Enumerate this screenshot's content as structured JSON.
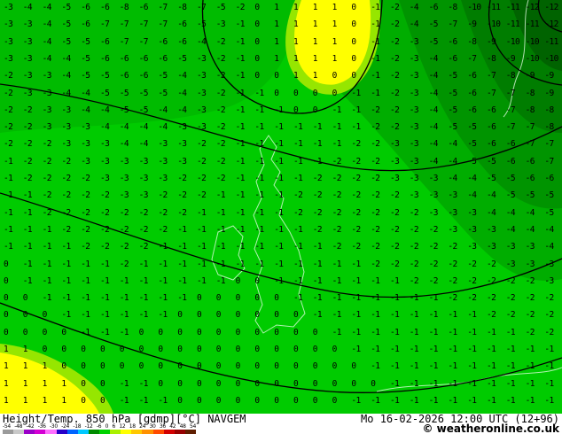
{
  "footer": {
    "title": "Height/Temp. 850 hPa [gdmp][°C] NAVGEM",
    "datetime": "Mo 16-02-2026 12:00 UTC (12+96)",
    "copyright": "© weatheronline.co.uk"
  },
  "scale": {
    "labels": [
      "-54",
      "-48",
      "-42",
      "-36",
      "-30",
      "-24",
      "-18",
      "-12",
      "-6",
      "0",
      "6",
      "12",
      "18",
      "24",
      "30",
      "36",
      "42",
      "48",
      "54"
    ],
    "segment_colors": [
      "#9b9b9b",
      "#c9c9c9",
      "#9a00c8",
      "#d400d4",
      "#ff6eff",
      "#2800c8",
      "#0064ff",
      "#00c8ff",
      "#008c00",
      "#00d200",
      "#aaf000",
      "#ffff00",
      "#ffc800",
      "#ff9100",
      "#ff4b00",
      "#d20000",
      "#960000",
      "#5f1e00"
    ]
  },
  "colors": {
    "base_green": "#00cb00",
    "band_green_1": "#00bb00",
    "band_green_2": "#00ad00",
    "band_green_3": "#009400",
    "band_green_4": "#007d00",
    "corner_green": "#006300",
    "warm_rim": "#96e600",
    "warm_yellow": "#ffff00",
    "contour_black": "#000000"
  },
  "map": {
    "unit": "°C",
    "temp_rows": [
      [
        -3,
        -4,
        -4,
        -5,
        -6,
        -6,
        -8,
        -6,
        -7,
        -8,
        -7,
        -5,
        -2,
        0,
        1,
        1,
        1,
        1,
        0,
        -1,
        -2,
        -4,
        -6,
        -8,
        -10,
        -11,
        -11,
        -12,
        -12
      ],
      [
        -3,
        -3,
        -4,
        -5,
        -6,
        -7,
        -7,
        -7,
        -7,
        -6,
        -5,
        -3,
        -1,
        0,
        1,
        1,
        1,
        1,
        0,
        -1,
        -2,
        -4,
        -5,
        -7,
        -9,
        -10,
        -11,
        -11,
        -12
      ],
      [
        -3,
        -3,
        -4,
        -5,
        -5,
        -6,
        -7,
        -7,
        -6,
        -6,
        -4,
        -2,
        -1,
        0,
        1,
        1,
        1,
        1,
        0,
        -1,
        -2,
        -3,
        -5,
        -6,
        -8,
        -9,
        -10,
        -10,
        -11
      ],
      [
        -3,
        -3,
        -4,
        -4,
        -5,
        -6,
        -6,
        -6,
        -6,
        -5,
        -3,
        -2,
        -1,
        0,
        1,
        1,
        1,
        1,
        0,
        -1,
        -2,
        -3,
        -4,
        -6,
        -7,
        -8,
        -9,
        -10,
        -10
      ],
      [
        -2,
        -3,
        -3,
        -4,
        -5,
        -5,
        -6,
        -6,
        -5,
        -4,
        -3,
        -2,
        -1,
        0,
        0,
        1,
        1,
        0,
        0,
        -1,
        -2,
        -3,
        -4,
        -5,
        -6,
        -7,
        -8,
        -9,
        -9
      ],
      [
        -2,
        -3,
        -3,
        -4,
        -4,
        -5,
        -5,
        -5,
        -5,
        -4,
        -3,
        -2,
        -1,
        -1,
        0,
        0,
        0,
        0,
        -1,
        -1,
        -2,
        -3,
        -4,
        -5,
        -6,
        -7,
        -7,
        -8,
        -9
      ],
      [
        -2,
        -2,
        -3,
        -3,
        -4,
        -4,
        -5,
        -5,
        -4,
        -4,
        -3,
        -2,
        -1,
        -1,
        -1,
        0,
        0,
        -1,
        -1,
        -2,
        -2,
        -3,
        -4,
        -5,
        -6,
        -6,
        -7,
        -8,
        -8
      ],
      [
        -2,
        -2,
        -3,
        -3,
        -3,
        -4,
        -4,
        -4,
        -4,
        -3,
        -3,
        -2,
        -1,
        -1,
        -1,
        -1,
        -1,
        -1,
        -1,
        -2,
        -2,
        -3,
        -4,
        -5,
        -5,
        -6,
        -7,
        -7,
        -8
      ],
      [
        -2,
        -2,
        -2,
        -3,
        -3,
        -3,
        -4,
        -4,
        -3,
        -3,
        -2,
        -2,
        -1,
        -1,
        -1,
        -1,
        -1,
        -1,
        -2,
        -2,
        -3,
        -3,
        -4,
        -4,
        -5,
        -6,
        -6,
        -7,
        -7
      ],
      [
        -1,
        -2,
        -2,
        -2,
        -3,
        -3,
        -3,
        -3,
        -3,
        -3,
        -2,
        -2,
        -1,
        -1,
        -1,
        -1,
        -1,
        -2,
        -2,
        -2,
        -3,
        -3,
        -4,
        -4,
        -5,
        -5,
        -6,
        -6,
        -7
      ],
      [
        -1,
        -2,
        -2,
        -2,
        -2,
        -3,
        -3,
        -3,
        -3,
        -2,
        -2,
        -2,
        -1,
        -1,
        -1,
        -1,
        -2,
        -2,
        -2,
        -2,
        -3,
        -3,
        -3,
        -4,
        -4,
        -5,
        -5,
        -6,
        -6
      ],
      [
        -1,
        -1,
        -2,
        -2,
        -2,
        -2,
        -3,
        -3,
        -2,
        -2,
        -2,
        -1,
        -1,
        -1,
        -1,
        -2,
        -2,
        -2,
        -2,
        -2,
        -2,
        -3,
        -3,
        -3,
        -4,
        -4,
        -5,
        -5,
        -5
      ],
      [
        -1,
        -1,
        -2,
        -2,
        -2,
        -2,
        -2,
        -2,
        -2,
        -2,
        -1,
        -1,
        -1,
        -1,
        -1,
        -2,
        -2,
        -2,
        -2,
        -2,
        -2,
        -2,
        -3,
        -3,
        -3,
        -4,
        -4,
        -4,
        -5
      ],
      [
        -1,
        -1,
        -1,
        -2,
        -2,
        -2,
        -2,
        -2,
        -2,
        -1,
        -1,
        -1,
        -1,
        -1,
        -1,
        -1,
        -2,
        -2,
        -2,
        -2,
        -2,
        -2,
        -2,
        -3,
        -3,
        -3,
        -4,
        -4,
        -4
      ],
      [
        -1,
        -1,
        -1,
        -1,
        -2,
        -2,
        -2,
        -2,
        -1,
        -1,
        -1,
        -1,
        -1,
        -1,
        -1,
        -1,
        -1,
        -2,
        -2,
        -2,
        -2,
        -2,
        -2,
        -2,
        -3,
        -3,
        -3,
        -3,
        -4
      ],
      [
        0,
        -1,
        -1,
        -1,
        -1,
        -1,
        -2,
        -1,
        -1,
        -1,
        -1,
        -1,
        -1,
        -1,
        -1,
        -1,
        -1,
        -1,
        -1,
        -2,
        -2,
        -2,
        -2,
        -2,
        -2,
        -2,
        -3,
        -3,
        -3
      ],
      [
        0,
        -1,
        -1,
        -1,
        -1,
        -1,
        -1,
        -1,
        -1,
        -1,
        -1,
        -1,
        0,
        0,
        -1,
        -1,
        -1,
        -1,
        -1,
        -1,
        -1,
        -2,
        -2,
        -2,
        -2,
        -2,
        -2,
        -2,
        -3
      ],
      [
        0,
        0,
        -1,
        -1,
        -1,
        -1,
        -1,
        -1,
        -1,
        -1,
        0,
        0,
        0,
        0,
        0,
        -1,
        -1,
        -1,
        -1,
        -1,
        -1,
        -1,
        -1,
        -2,
        -2,
        -2,
        -2,
        -2,
        -2
      ],
      [
        0,
        0,
        0,
        -1,
        -1,
        -1,
        -1,
        -1,
        -1,
        0,
        0,
        0,
        0,
        0,
        0,
        0,
        -1,
        -1,
        -1,
        -1,
        -1,
        -1,
        -1,
        -1,
        -1,
        -2,
        -2,
        -2,
        -2
      ],
      [
        0,
        0,
        0,
        0,
        -1,
        -1,
        -1,
        0,
        0,
        0,
        0,
        0,
        0,
        0,
        0,
        0,
        0,
        -1,
        -1,
        -1,
        -1,
        -1,
        -1,
        -1,
        -1,
        -1,
        -1,
        -2,
        -2
      ],
      [
        1,
        1,
        0,
        0,
        0,
        0,
        0,
        0,
        0,
        0,
        0,
        0,
        0,
        0,
        0,
        0,
        0,
        0,
        -1,
        -1,
        -1,
        -1,
        -1,
        -1,
        -1,
        -1,
        -1,
        -1,
        -1
      ],
      [
        1,
        1,
        1,
        0,
        0,
        0,
        0,
        0,
        0,
        0,
        0,
        0,
        0,
        0,
        0,
        0,
        0,
        0,
        0,
        -1,
        -1,
        -1,
        -1,
        -1,
        -1,
        -1,
        -1,
        -1,
        -1
      ],
      [
        1,
        1,
        1,
        1,
        0,
        0,
        -1,
        -1,
        0,
        0,
        0,
        0,
        0,
        0,
        0,
        0,
        0,
        0,
        0,
        0,
        -1,
        -1,
        -1,
        -1,
        -1,
        -1,
        -1,
        -1,
        -1
      ],
      [
        1,
        1,
        1,
        1,
        0,
        0,
        -1,
        -1,
        -1,
        0,
        0,
        0,
        0,
        0,
        0,
        0,
        0,
        0,
        -1,
        -1,
        -1,
        -1,
        -1,
        -1,
        -1,
        -1,
        -1,
        -1,
        -1
      ]
    ]
  }
}
